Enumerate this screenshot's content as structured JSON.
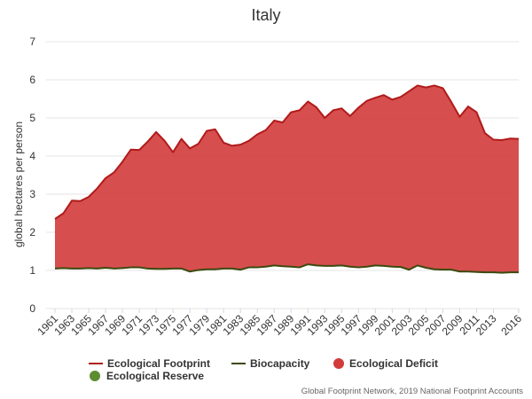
{
  "chart_data": {
    "type": "area",
    "title": "Italy",
    "ylabel": "global hectares per person",
    "xlabel": "",
    "ylim": [
      0,
      7
    ],
    "yticks": [
      0,
      1,
      2,
      3,
      4,
      5,
      6,
      7
    ],
    "xticks": [
      1961,
      1963,
      1965,
      1967,
      1969,
      1971,
      1973,
      1975,
      1977,
      1979,
      1981,
      1983,
      1985,
      1987,
      1989,
      1991,
      1993,
      1995,
      1997,
      1999,
      2001,
      2003,
      2005,
      2007,
      2009,
      2011,
      2013,
      2016
    ],
    "grid": true,
    "legend_position": "bottom",
    "x": [
      1961,
      1962,
      1963,
      1964,
      1965,
      1966,
      1967,
      1968,
      1969,
      1970,
      1971,
      1972,
      1973,
      1974,
      1975,
      1976,
      1977,
      1978,
      1979,
      1980,
      1981,
      1982,
      1983,
      1984,
      1985,
      1986,
      1987,
      1988,
      1989,
      1990,
      1991,
      1992,
      1993,
      1994,
      1995,
      1996,
      1997,
      1998,
      1999,
      2000,
      2001,
      2002,
      2003,
      2004,
      2005,
      2006,
      2007,
      2008,
      2009,
      2010,
      2011,
      2012,
      2013,
      2014,
      2015,
      2016
    ],
    "series": [
      {
        "name": "Ecological Footprint",
        "color": "#b11a1a",
        "values": [
          2.35,
          2.5,
          2.83,
          2.82,
          2.93,
          3.15,
          3.42,
          3.57,
          3.85,
          4.17,
          4.16,
          4.38,
          4.63,
          4.4,
          4.1,
          4.45,
          4.2,
          4.32,
          4.66,
          4.7,
          4.35,
          4.27,
          4.3,
          4.4,
          4.57,
          4.68,
          4.93,
          4.88,
          5.15,
          5.2,
          5.43,
          5.28,
          5.0,
          5.2,
          5.25,
          5.05,
          5.27,
          5.45,
          5.53,
          5.6,
          5.48,
          5.55,
          5.7,
          5.85,
          5.8,
          5.85,
          5.78,
          5.42,
          5.03,
          5.3,
          5.15,
          4.6,
          4.43,
          4.42,
          4.46,
          4.45
        ]
      },
      {
        "name": "Biocapacity",
        "color": "#3b4a0e",
        "values": [
          1.05,
          1.06,
          1.05,
          1.05,
          1.06,
          1.05,
          1.07,
          1.05,
          1.06,
          1.08,
          1.08,
          1.05,
          1.04,
          1.04,
          1.05,
          1.05,
          0.97,
          1.01,
          1.03,
          1.03,
          1.05,
          1.05,
          1.02,
          1.08,
          1.08,
          1.1,
          1.13,
          1.11,
          1.1,
          1.08,
          1.16,
          1.13,
          1.12,
          1.12,
          1.13,
          1.1,
          1.08,
          1.1,
          1.13,
          1.12,
          1.1,
          1.09,
          1.02,
          1.13,
          1.07,
          1.03,
          1.02,
          1.02,
          0.97,
          0.97,
          0.96,
          0.95,
          0.95,
          0.94,
          0.95,
          0.95
        ]
      }
    ],
    "fills": [
      {
        "name": "Ecological Deficit",
        "color": "#d23b3b"
      },
      {
        "name": "Ecological Reserve",
        "color": "#5e8c31"
      }
    ],
    "credits": "Global Footprint Network, 2019 National Footprint Accounts"
  }
}
